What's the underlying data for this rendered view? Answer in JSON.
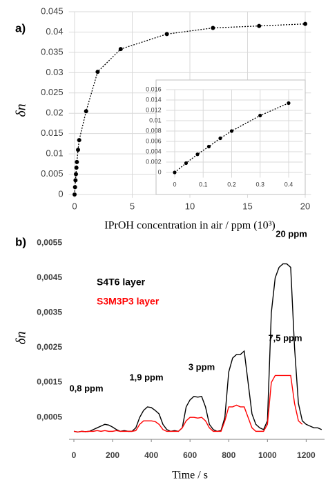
{
  "chart_data": [
    {
      "type": "line",
      "panel_label": "a)",
      "y_label": "δn",
      "x_label": "IPrOH concentration in air / ppm (10³)",
      "x": [
        0,
        0.04,
        0.08,
        0.12,
        0.16,
        0.2,
        0.3,
        0.4,
        1,
        2,
        4,
        8,
        12,
        16,
        20
      ],
      "series": [
        {
          "color": "#000000",
          "values": [
            0,
            0.0018,
            0.0035,
            0.005,
            0.0066,
            0.008,
            0.011,
            0.0134,
            0.0205,
            0.0302,
            0.0358,
            0.0395,
            0.041,
            0.0415,
            0.042
          ]
        }
      ],
      "xlim": [
        -0.5,
        20.5
      ],
      "xticks": [
        0,
        5,
        10,
        15,
        20
      ],
      "ylim": [
        -0.0008,
        0.045
      ],
      "yticks": [
        0,
        0.005,
        0.01,
        0.015,
        0.02,
        0.025,
        0.03,
        0.035,
        0.04,
        0.045
      ],
      "grid": true,
      "markers": true,
      "line_style": "dotted"
    },
    {
      "type": "line",
      "x": [
        0,
        0.04,
        0.08,
        0.12,
        0.16,
        0.2,
        0.3,
        0.4
      ],
      "series": [
        {
          "color": "#000000",
          "values": [
            0,
            0.0018,
            0.0035,
            0.005,
            0.0066,
            0.008,
            0.011,
            0.0134
          ]
        }
      ],
      "xlim": [
        -0.03,
        0.45
      ],
      "xticks": [
        0,
        0.1,
        0.2,
        0.3,
        0.4
      ],
      "ylim": [
        -0.001,
        0.016
      ],
      "yticks": [
        0,
        0.002,
        0.004,
        0.006,
        0.008,
        0.01,
        0.012,
        0.014,
        0.016
      ],
      "grid": true,
      "markers": true,
      "line_style": "dotted"
    },
    {
      "type": "line",
      "panel_label": "b)",
      "y_label": "δn",
      "x_label": "Time / s",
      "x": [
        0,
        20,
        40,
        60,
        80,
        100,
        120,
        140,
        160,
        180,
        200,
        220,
        240,
        260,
        280,
        300,
        320,
        340,
        360,
        380,
        400,
        420,
        440,
        460,
        480,
        500,
        520,
        540,
        560,
        580,
        600,
        620,
        640,
        660,
        680,
        700,
        720,
        740,
        760,
        780,
        800,
        820,
        840,
        860,
        880,
        900,
        920,
        940,
        960,
        980,
        1000,
        1020,
        1040,
        1060,
        1080,
        1100,
        1120,
        1140,
        1160,
        1180,
        1200,
        1220,
        1240,
        1260,
        1280
      ],
      "series": [
        {
          "name": "S4T6 layer",
          "color": "#000000",
          "values": [
            0.0001,
            8e-05,
            0.0001,
            9e-05,
            0.0001,
            0.00015,
            0.0002,
            0.00025,
            0.0003,
            0.00028,
            0.00022,
            0.00015,
            0.0001,
            0.00012,
            0.0001,
            0.0001,
            0.0002,
            0.0005,
            0.0007,
            0.0008,
            0.00078,
            0.0007,
            0.0006,
            0.0003,
            0.00015,
            0.0001,
            0.00012,
            0.0001,
            0.0002,
            0.0008,
            0.001,
            0.0011,
            0.00108,
            0.0011,
            0.0008,
            0.0003,
            0.00015,
            0.0001,
            0.00012,
            0.0005,
            0.0018,
            0.0022,
            0.0023,
            0.0023,
            0.0024,
            0.0015,
            0.0006,
            0.0003,
            0.0002,
            0.00015,
            0.0004,
            0.0035,
            0.0045,
            0.0048,
            0.0049,
            0.0049,
            0.0048,
            0.0025,
            0.0009,
            0.0004,
            0.0003,
            0.00025,
            0.0002,
            0.0002,
            0.00015
          ]
        },
        {
          "name": "S3M3P3 layer",
          "color": "#ff0000",
          "values": [
            0.0001,
            8e-05,
            0.0001,
            9e-05,
            0.0001,
            0.0001,
            0.00012,
            0.0001,
            0.00012,
            0.0001,
            0.0001,
            0.00012,
            0.0001,
            0.0001,
            0.0001,
            0.0001,
            0.00012,
            0.0003,
            0.0004,
            0.0004,
            0.0004,
            0.00038,
            0.0003,
            0.00015,
            0.0001,
            0.0001,
            0.0001,
            0.0001,
            0.0002,
            0.0004,
            0.0005,
            0.0005,
            0.00048,
            0.0005,
            0.0004,
            0.0002,
            0.0001,
            0.0001,
            0.0001,
            0.0004,
            0.0008,
            0.0008,
            0.00085,
            0.0008,
            0.0008,
            0.0005,
            0.0002,
            0.0001,
            0.0001,
            0.0001,
            0.0003,
            0.0015,
            0.0017,
            0.0017,
            0.0017,
            0.0017,
            0.0017,
            0.0009,
            0.0004,
            0.0003,
            null,
            null,
            null,
            null,
            null
          ]
        }
      ],
      "xlim": [
        -25,
        1295
      ],
      "xticks": [
        0,
        200,
        400,
        600,
        800,
        1000,
        1200
      ],
      "ylim": [
        -0.00013,
        0.00584
      ],
      "yticks": [
        {
          "value": 0.0005,
          "label": "0,0005"
        },
        {
          "value": 0.0015,
          "label": "0,0015"
        },
        {
          "value": 0.0025,
          "label": "0,0025"
        },
        {
          "value": 0.0035,
          "label": "0,0035"
        },
        {
          "value": 0.0045,
          "label": "0,0045"
        },
        {
          "value": 0.0055,
          "label": "0,0055"
        }
      ],
      "grid": false,
      "markers": false,
      "line_style": "solid",
      "annotations": [
        "0,8 ppm",
        "1,9 ppm",
        "3 ppm",
        "7,5 ppm",
        "20 ppm"
      ]
    }
  ]
}
